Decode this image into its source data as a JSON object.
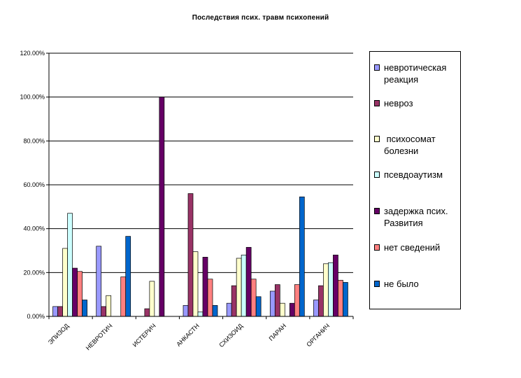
{
  "chart_data": {
    "type": "bar",
    "title": "Последствия псих. травм психопений",
    "xlabel": "",
    "ylabel": "",
    "ylim": [
      0,
      120
    ],
    "y_ticks": [
      "0.00%",
      "20.00%",
      "40.00%",
      "60.00%",
      "80.00%",
      "100.00%",
      "120.00%"
    ],
    "grid": true,
    "legend_position": "right",
    "categories": [
      "ЭПИЗОД",
      "НЕВРОТИЧ",
      "ИСТЕРИЧ",
      "АНКАСТН",
      "СХИЗОИД",
      "ПАРАН",
      "ОРГАНИЧ"
    ],
    "series": [
      {
        "name": "невротическая реакция",
        "color": "#9999ff",
        "values": [
          4.5,
          32,
          0,
          5,
          6,
          11.5,
          7.5
        ]
      },
      {
        "name": "невроз",
        "color": "#993366",
        "values": [
          4.5,
          4.5,
          3.5,
          56,
          14,
          14.5,
          14
        ]
      },
      {
        "name": " психосомат болезни",
        "color": "#ffffcc",
        "values": [
          31,
          9.5,
          16,
          29.5,
          26.5,
          6,
          24
        ]
      },
      {
        "name": "псевдоаутизм",
        "color": "#ccffff",
        "values": [
          47,
          0,
          0,
          2,
          28,
          0,
          24.5
        ]
      },
      {
        "name": "задержка псих. Развития",
        "color": "#660066",
        "values": [
          22,
          0,
          100,
          27,
          31.5,
          6,
          28
        ]
      },
      {
        "name": "нет сведений",
        "color": "#ff8080",
        "values": [
          20.5,
          18,
          0,
          17,
          17,
          14.5,
          16.5
        ]
      },
      {
        "name": "не было",
        "color": "#0066cc",
        "values": [
          7.5,
          36.5,
          0,
          5,
          9,
          54.5,
          15.5
        ]
      }
    ]
  }
}
